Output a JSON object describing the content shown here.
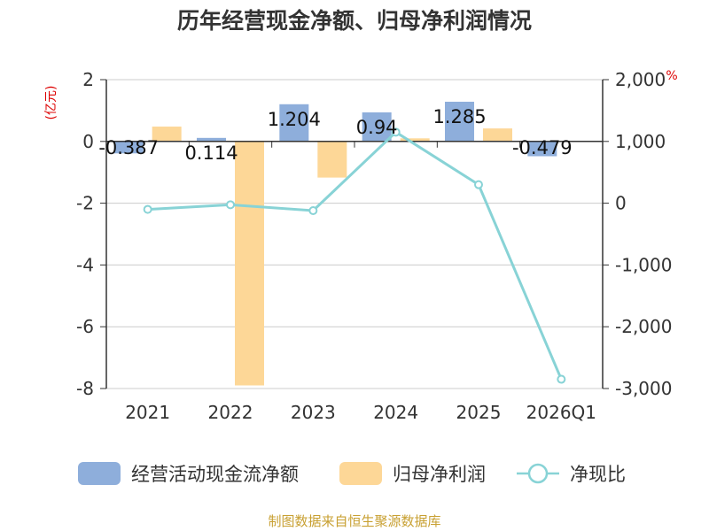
{
  "chart_data": {
    "type": "bar+line",
    "title": "历年经营现金净额、归母净利润情况",
    "categories": [
      "2021",
      "2022",
      "2023",
      "2024",
      "2025",
      "2026Q1"
    ],
    "series": [
      {
        "name": "经营活动现金流净额",
        "kind": "bar",
        "axis": "left",
        "color": "#8eaedb",
        "values": [
          -0.387,
          0.114,
          1.204,
          0.94,
          1.285,
          -0.479
        ],
        "labels": [
          "-0.387",
          "0.114",
          "1.204",
          "0.94",
          "1.285",
          "-0.479"
        ]
      },
      {
        "name": "归母净利润",
        "kind": "bar",
        "axis": "left",
        "color": "#fdd797",
        "values": [
          0.48,
          -7.9,
          -1.17,
          0.1,
          0.42,
          0.0
        ]
      },
      {
        "name": "净现比",
        "kind": "line",
        "axis": "right",
        "color": "#88d3d6",
        "values": [
          -100,
          -25,
          -120,
          1150,
          300,
          -2850
        ]
      }
    ],
    "y_left": {
      "unit": "(亿元)",
      "min": -8,
      "max": 2,
      "ticks": [
        2,
        0,
        -2,
        -4,
        -6,
        -8
      ],
      "tick_labels": [
        "2",
        "0",
        "-2",
        "-4",
        "-6",
        "-8"
      ]
    },
    "y_right": {
      "unit": "%",
      "min": -3000,
      "max": 2000,
      "ticks": [
        2000,
        1000,
        0,
        -1000,
        -2000,
        -3000
      ],
      "tick_labels": [
        "2,000",
        "1,000",
        "0",
        "-1,000",
        "-2,000",
        "-3,000"
      ]
    },
    "legend": {
      "position": "bottom",
      "items": [
        "经营活动现金流净额",
        "归母净利润",
        "净现比"
      ]
    },
    "source": "制图数据来自恒生聚源数据库",
    "grid": true
  }
}
